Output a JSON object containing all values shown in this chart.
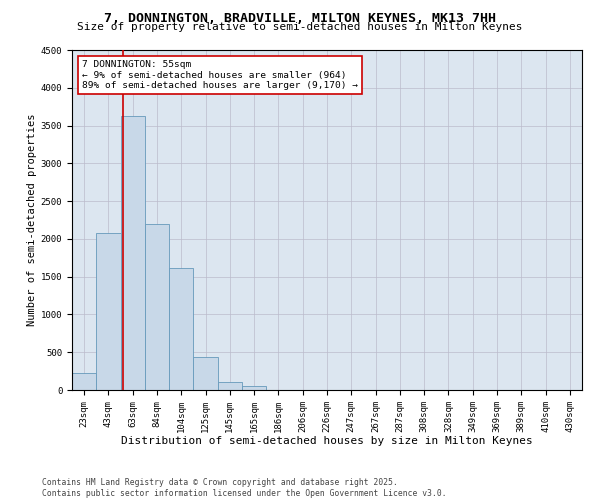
{
  "title": "7, DONNINGTON, BRADVILLE, MILTON KEYNES, MK13 7HH",
  "subtitle": "Size of property relative to semi-detached houses in Milton Keynes",
  "xlabel": "Distribution of semi-detached houses by size in Milton Keynes",
  "ylabel": "Number of semi-detached properties",
  "footer": "Contains HM Land Registry data © Crown copyright and database right 2025.\nContains public sector information licensed under the Open Government Licence v3.0.",
  "categories": [
    "23sqm",
    "43sqm",
    "63sqm",
    "84sqm",
    "104sqm",
    "125sqm",
    "145sqm",
    "165sqm",
    "186sqm",
    "206sqm",
    "226sqm",
    "247sqm",
    "267sqm",
    "287sqm",
    "308sqm",
    "328sqm",
    "349sqm",
    "369sqm",
    "389sqm",
    "410sqm",
    "430sqm"
  ],
  "bar_values": [
    220,
    2080,
    3620,
    2200,
    1620,
    440,
    100,
    50,
    0,
    0,
    0,
    0,
    0,
    0,
    0,
    0,
    0,
    0,
    0,
    0,
    0
  ],
  "bar_color": "#c8d8e8",
  "bar_edge_color": "#6699bb",
  "bar_edge_width": 0.6,
  "grid_color": "#bbbbcc",
  "bg_color": "#dce6f0",
  "annotation_text": "7 DONNINGTON: 55sqm\n← 9% of semi-detached houses are smaller (964)\n89% of semi-detached houses are larger (9,170) →",
  "vline_x": 1.6,
  "vline_color": "#cc0000",
  "ylim": [
    0,
    4500
  ],
  "yticks": [
    0,
    500,
    1000,
    1500,
    2000,
    2500,
    3000,
    3500,
    4000,
    4500
  ],
  "title_fontsize": 9.5,
  "subtitle_fontsize": 8.0,
  "ylabel_fontsize": 7.5,
  "xlabel_fontsize": 8.0,
  "tick_fontsize": 6.5,
  "annotation_fontsize": 6.8,
  "footer_fontsize": 5.8
}
